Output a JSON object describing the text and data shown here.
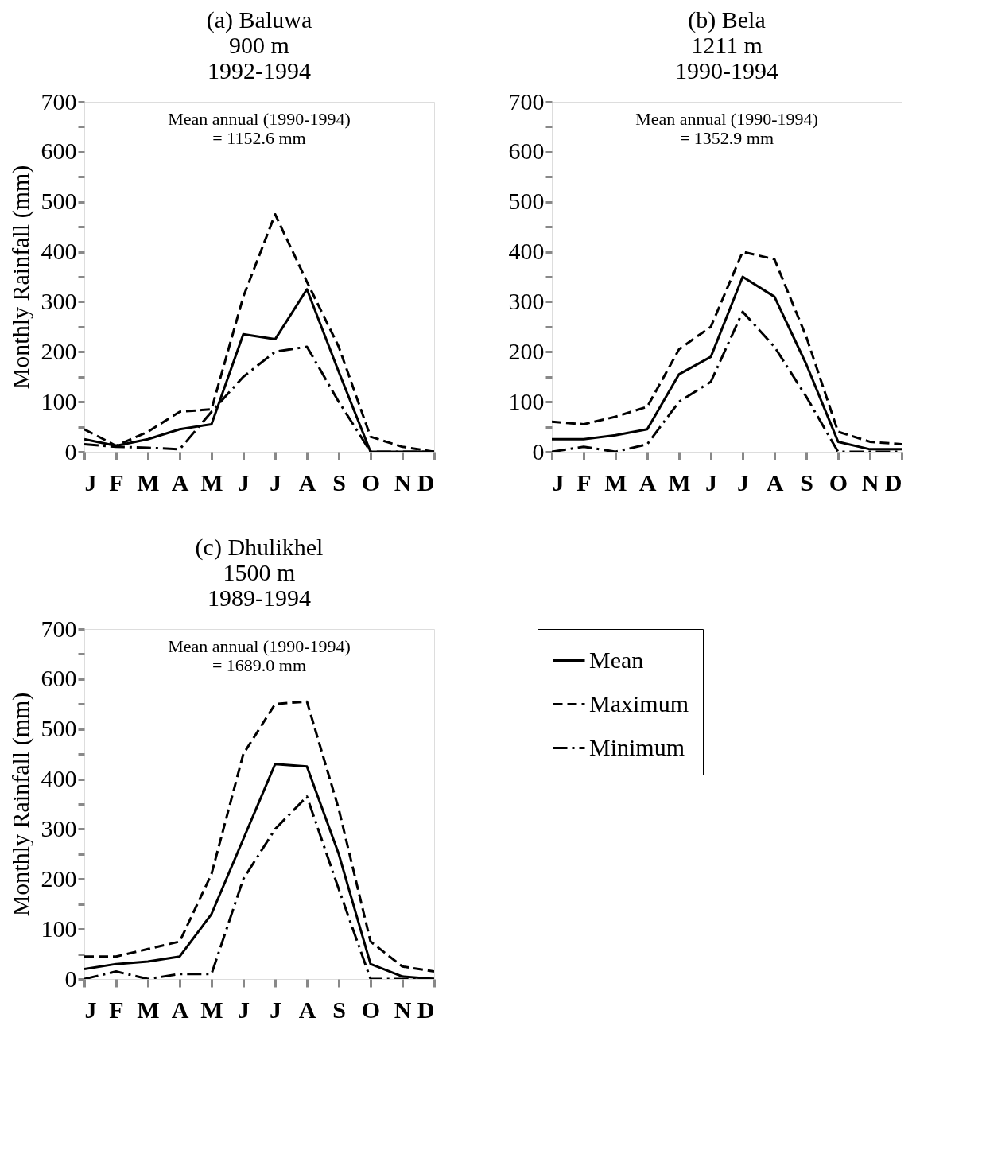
{
  "chart_data": [
    {
      "type": "line",
      "title": "(a) Baluwa\n900 m\n1992-1994",
      "ylabel": "Monthly Rainfall (mm)",
      "categories": [
        "J",
        "F",
        "M",
        "A",
        "M",
        "J",
        "J",
        "A",
        "S",
        "O",
        "N",
        "D"
      ],
      "ylim": [
        0,
        700
      ],
      "yticks": [
        0,
        {
          "value": 50,
          "label": null
        },
        100,
        {
          "value": 150,
          "label": null
        },
        200,
        {
          "value": 250,
          "label": null
        },
        300,
        {
          "value": 350,
          "label": null
        },
        400,
        {
          "value": 450,
          "label": null
        },
        500,
        {
          "value": 550,
          "label": null
        },
        600,
        {
          "value": 650,
          "label": null
        },
        700
      ],
      "annotations": [
        "Mean annual (1990-1994)\n= 1152.6 mm"
      ],
      "grid": false,
      "series": [
        {
          "color": "#000000",
          "line_style": "solid",
          "values": [
            25,
            12,
            25,
            45,
            55,
            235,
            225,
            325,
            160,
            0,
            0,
            0
          ]
        },
        {
          "color": "#000000",
          "line_style": "dashed",
          "values": [
            45,
            12,
            40,
            80,
            85,
            310,
            475,
            340,
            210,
            30,
            10,
            0
          ]
        },
        {
          "color": "#000000",
          "line_style": "dashdot",
          "values": [
            15,
            10,
            8,
            5,
            80,
            150,
            200,
            210,
            100,
            0,
            0,
            0
          ]
        }
      ]
    },
    {
      "type": "line",
      "title": "(b) Bela\n1211 m\n1990-1994",
      "categories": [
        "J",
        "F",
        "M",
        "A",
        "M",
        "J",
        "J",
        "A",
        "S",
        "O",
        "N",
        "D"
      ],
      "ylim": [
        0,
        700
      ],
      "yticks": [
        0,
        {
          "value": 50,
          "label": null
        },
        100,
        {
          "value": 150,
          "label": null
        },
        200,
        {
          "value": 250,
          "label": null
        },
        300,
        {
          "value": 350,
          "label": null
        },
        400,
        {
          "value": 450,
          "label": null
        },
        500,
        {
          "value": 550,
          "label": null
        },
        600,
        {
          "value": 650,
          "label": null
        },
        700
      ],
      "annotations": [
        "Mean annual (1990-1994)\n= 1352.9 mm"
      ],
      "grid": false,
      "series": [
        {
          "color": "#000000",
          "line_style": "solid",
          "values": [
            25,
            25,
            33,
            45,
            155,
            190,
            350,
            310,
            175,
            20,
            5,
            5
          ]
        },
        {
          "color": "#000000",
          "line_style": "dashed",
          "values": [
            60,
            55,
            70,
            90,
            205,
            250,
            400,
            385,
            230,
            40,
            20,
            15
          ]
        },
        {
          "color": "#000000",
          "line_style": "dashdot",
          "values": [
            0,
            10,
            0,
            15,
            100,
            140,
            280,
            210,
            110,
            0,
            0,
            0
          ]
        }
      ]
    },
    {
      "type": "line",
      "title": "(c) Dhulikhel\n1500 m\n1989-1994",
      "ylabel": "Monthly Rainfall (mm)",
      "categories": [
        "J",
        "F",
        "M",
        "A",
        "M",
        "J",
        "J",
        "A",
        "S",
        "O",
        "N",
        "D"
      ],
      "ylim": [
        0,
        700
      ],
      "yticks": [
        0,
        {
          "value": 50,
          "label": null
        },
        100,
        {
          "value": 150,
          "label": null
        },
        200,
        {
          "value": 250,
          "label": null
        },
        300,
        {
          "value": 350,
          "label": null
        },
        400,
        {
          "value": 450,
          "label": null
        },
        500,
        {
          "value": 550,
          "label": null
        },
        600,
        {
          "value": 650,
          "label": null
        },
        700
      ],
      "annotations": [
        "Mean annual (1990-1994)\n= 1689.0 mm"
      ],
      "grid": false,
      "legend": "right",
      "series": [
        {
          "name": "Mean",
          "color": "#000000",
          "line_style": "solid",
          "values": [
            20,
            30,
            35,
            45,
            130,
            280,
            430,
            425,
            250,
            30,
            5,
            0
          ]
        },
        {
          "name": "Maximum",
          "color": "#000000",
          "line_style": "dashed",
          "values": [
            45,
            45,
            60,
            75,
            210,
            450,
            550,
            555,
            340,
            75,
            25,
            15
          ]
        },
        {
          "name": "Minimum",
          "color": "#000000",
          "line_style": "dashdot",
          "values": [
            0,
            15,
            0,
            10,
            10,
            200,
            300,
            365,
            180,
            0,
            0,
            0
          ]
        }
      ]
    }
  ]
}
